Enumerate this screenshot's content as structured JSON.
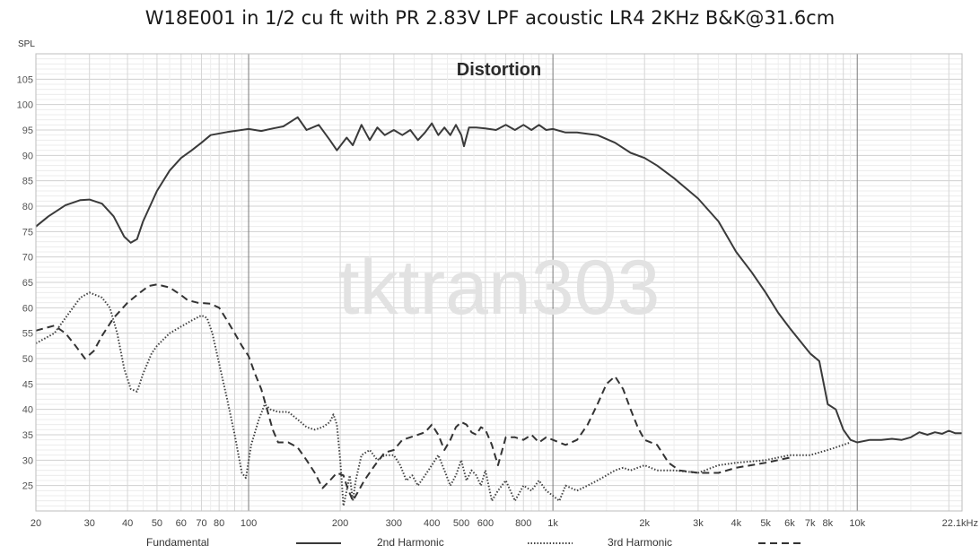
{
  "chart_data": {
    "type": "line",
    "title": "W18E001 in 1/2 cu ft with PR 2.83V LPF acoustic LR4 2KHz B&K@31.6cm",
    "subtitle": "Distortion",
    "ylabel": "SPL",
    "xlabel": "",
    "watermark": "tktran303",
    "x_scale": "log",
    "xlim": [
      20,
      22100
    ],
    "ylim": [
      20,
      110
    ],
    "grid": true,
    "x_ticks": [
      {
        "value": 20,
        "label": "20"
      },
      {
        "value": 30,
        "label": "30"
      },
      {
        "value": 40,
        "label": "40"
      },
      {
        "value": 50,
        "label": "50"
      },
      {
        "value": 60,
        "label": "60"
      },
      {
        "value": 70,
        "label": "70"
      },
      {
        "value": 80,
        "label": "80"
      },
      {
        "value": 100,
        "label": "100"
      },
      {
        "value": 200,
        "label": "200"
      },
      {
        "value": 300,
        "label": "300"
      },
      {
        "value": 400,
        "label": "400"
      },
      {
        "value": 500,
        "label": "500"
      },
      {
        "value": 600,
        "label": "600"
      },
      {
        "value": 800,
        "label": "800"
      },
      {
        "value": 1000,
        "label": "1k"
      },
      {
        "value": 2000,
        "label": "2k"
      },
      {
        "value": 3000,
        "label": "3k"
      },
      {
        "value": 4000,
        "label": "4k"
      },
      {
        "value": 5000,
        "label": "5k"
      },
      {
        "value": 6000,
        "label": "6k"
      },
      {
        "value": 7000,
        "label": "7k"
      },
      {
        "value": 8000,
        "label": "8k"
      },
      {
        "value": 10000,
        "label": "10k"
      },
      {
        "value": 22100,
        "label": "22.1kHz"
      }
    ],
    "y_ticks": [
      25,
      30,
      35,
      40,
      45,
      50,
      55,
      60,
      65,
      70,
      75,
      80,
      85,
      90,
      95,
      100,
      105
    ],
    "legend_position": "bottom",
    "series": [
      {
        "name": "Fundamental",
        "style": "solid",
        "color": "#3a3a3a",
        "points": [
          [
            20,
            76
          ],
          [
            22,
            78
          ],
          [
            25,
            80.2
          ],
          [
            28,
            81.2
          ],
          [
            30,
            81.3
          ],
          [
            33,
            80.5
          ],
          [
            36,
            78
          ],
          [
            39,
            74
          ],
          [
            41,
            72.8
          ],
          [
            43,
            73.5
          ],
          [
            45,
            77
          ],
          [
            50,
            83
          ],
          [
            55,
            87
          ],
          [
            60,
            89.5
          ],
          [
            65,
            91
          ],
          [
            70,
            92.5
          ],
          [
            75,
            94
          ],
          [
            85,
            94.6
          ],
          [
            100,
            95.2
          ],
          [
            110,
            94.8
          ],
          [
            120,
            95.3
          ],
          [
            130,
            95.7
          ],
          [
            145,
            97.5
          ],
          [
            155,
            95
          ],
          [
            170,
            96
          ],
          [
            185,
            93
          ],
          [
            195,
            91
          ],
          [
            210,
            93.5
          ],
          [
            220,
            92
          ],
          [
            235,
            96
          ],
          [
            250,
            93
          ],
          [
            265,
            95.5
          ],
          [
            280,
            94
          ],
          [
            300,
            95
          ],
          [
            320,
            94
          ],
          [
            340,
            95
          ],
          [
            360,
            93
          ],
          [
            380,
            94.5
          ],
          [
            400,
            96.3
          ],
          [
            420,
            94
          ],
          [
            440,
            95.5
          ],
          [
            460,
            94
          ],
          [
            480,
            96
          ],
          [
            500,
            94
          ],
          [
            510,
            91.8
          ],
          [
            530,
            95.5
          ],
          [
            560,
            95.5
          ],
          [
            600,
            95.3
          ],
          [
            650,
            95
          ],
          [
            700,
            96
          ],
          [
            750,
            95
          ],
          [
            800,
            96
          ],
          [
            850,
            95
          ],
          [
            900,
            96
          ],
          [
            950,
            95
          ],
          [
            1000,
            95.2
          ],
          [
            1100,
            94.5
          ],
          [
            1200,
            94.5
          ],
          [
            1400,
            94
          ],
          [
            1600,
            92.5
          ],
          [
            1800,
            90.5
          ],
          [
            2000,
            89.5
          ],
          [
            2200,
            88
          ],
          [
            2500,
            85.5
          ],
          [
            3000,
            81.5
          ],
          [
            3500,
            77
          ],
          [
            4000,
            71
          ],
          [
            4500,
            67
          ],
          [
            5000,
            63
          ],
          [
            5500,
            59
          ],
          [
            6000,
            56
          ],
          [
            7000,
            51
          ],
          [
            7500,
            49.5
          ],
          [
            8000,
            41
          ],
          [
            8500,
            40
          ],
          [
            9000,
            36
          ],
          [
            9500,
            34
          ],
          [
            10000,
            33.5
          ],
          [
            11000,
            34
          ],
          [
            12000,
            34
          ],
          [
            13000,
            34.2
          ],
          [
            14000,
            34
          ],
          [
            15000,
            34.5
          ],
          [
            16000,
            35.5
          ],
          [
            17000,
            35
          ],
          [
            18000,
            35.5
          ],
          [
            19000,
            35.2
          ],
          [
            20000,
            35.8
          ],
          [
            21000,
            35.3
          ],
          [
            22100,
            35.3
          ]
        ]
      },
      {
        "name": "2nd Harmonic",
        "style": "dotted",
        "color": "#444444",
        "points": [
          [
            20,
            53
          ],
          [
            23,
            55
          ],
          [
            25,
            58
          ],
          [
            28,
            62
          ],
          [
            30,
            63
          ],
          [
            33,
            62
          ],
          [
            35,
            60
          ],
          [
            37,
            55
          ],
          [
            39,
            48
          ],
          [
            41,
            44
          ],
          [
            43,
            43.5
          ],
          [
            45,
            47
          ],
          [
            48,
            51
          ],
          [
            50,
            52.5
          ],
          [
            55,
            55
          ],
          [
            60,
            56.3
          ],
          [
            65,
            57.5
          ],
          [
            70,
            58.5
          ],
          [
            73,
            58
          ],
          [
            76,
            55
          ],
          [
            80,
            49
          ],
          [
            85,
            42
          ],
          [
            90,
            35
          ],
          [
            95,
            27.5
          ],
          [
            98,
            26.5
          ],
          [
            102,
            33
          ],
          [
            108,
            38
          ],
          [
            113,
            41
          ],
          [
            118,
            40
          ],
          [
            125,
            39.5
          ],
          [
            135,
            39.5
          ],
          [
            145,
            38
          ],
          [
            155,
            36.5
          ],
          [
            165,
            36
          ],
          [
            175,
            36.5
          ],
          [
            185,
            37.5
          ],
          [
            190,
            39
          ],
          [
            195,
            37
          ],
          [
            200,
            30
          ],
          [
            205,
            21
          ],
          [
            210,
            24
          ],
          [
            215,
            27
          ],
          [
            220,
            22
          ],
          [
            225,
            26
          ],
          [
            235,
            31
          ],
          [
            250,
            32
          ],
          [
            265,
            30
          ],
          [
            280,
            31
          ],
          [
            300,
            31
          ],
          [
            315,
            29
          ],
          [
            330,
            26
          ],
          [
            345,
            27
          ],
          [
            360,
            25
          ],
          [
            380,
            27
          ],
          [
            400,
            29
          ],
          [
            420,
            31
          ],
          [
            440,
            28
          ],
          [
            460,
            25
          ],
          [
            480,
            27
          ],
          [
            500,
            30
          ],
          [
            520,
            26
          ],
          [
            540,
            28
          ],
          [
            560,
            27
          ],
          [
            580,
            25
          ],
          [
            600,
            28
          ],
          [
            630,
            22
          ],
          [
            660,
            24
          ],
          [
            700,
            26
          ],
          [
            750,
            22
          ],
          [
            800,
            25
          ],
          [
            850,
            24
          ],
          [
            900,
            26
          ],
          [
            950,
            24
          ],
          [
            1000,
            23
          ],
          [
            1050,
            22
          ],
          [
            1100,
            25
          ],
          [
            1200,
            24
          ],
          [
            1300,
            25
          ],
          [
            1400,
            26
          ],
          [
            1500,
            27
          ],
          [
            1600,
            28
          ],
          [
            1700,
            28.5
          ],
          [
            1800,
            28
          ],
          [
            2000,
            29
          ],
          [
            2200,
            28
          ],
          [
            2500,
            28
          ],
          [
            3000,
            27.5
          ],
          [
            3500,
            29
          ],
          [
            4000,
            29.5
          ],
          [
            5000,
            30
          ],
          [
            6000,
            31
          ],
          [
            7000,
            31
          ],
          [
            8000,
            32
          ],
          [
            9000,
            33
          ],
          [
            9500,
            33.5
          ]
        ]
      },
      {
        "name": "3rd Harmonic",
        "style": "dashed",
        "color": "#333333",
        "points": [
          [
            20,
            55.5
          ],
          [
            23,
            56.5
          ],
          [
            25,
            55
          ],
          [
            27,
            52.5
          ],
          [
            29,
            50
          ],
          [
            31,
            51.5
          ],
          [
            33,
            54.5
          ],
          [
            36,
            58
          ],
          [
            40,
            61
          ],
          [
            44,
            63
          ],
          [
            47,
            64.3
          ],
          [
            50,
            64.6
          ],
          [
            55,
            64
          ],
          [
            60,
            62.5
          ],
          [
            63,
            61.5
          ],
          [
            68,
            61
          ],
          [
            75,
            60.8
          ],
          [
            80,
            60
          ],
          [
            85,
            57.5
          ],
          [
            90,
            55
          ],
          [
            95,
            52.5
          ],
          [
            100,
            50.5
          ],
          [
            105,
            47
          ],
          [
            110,
            44
          ],
          [
            115,
            40
          ],
          [
            120,
            36
          ],
          [
            125,
            33.5
          ],
          [
            135,
            33.5
          ],
          [
            145,
            32.5
          ],
          [
            155,
            30
          ],
          [
            165,
            27.5
          ],
          [
            175,
            24.5
          ],
          [
            185,
            26
          ],
          [
            195,
            27.5
          ],
          [
            205,
            27
          ],
          [
            210,
            25
          ],
          [
            220,
            22
          ],
          [
            230,
            24
          ],
          [
            240,
            26
          ],
          [
            260,
            29
          ],
          [
            280,
            31.5
          ],
          [
            300,
            32
          ],
          [
            320,
            34
          ],
          [
            340,
            34.5
          ],
          [
            360,
            35
          ],
          [
            380,
            35.5
          ],
          [
            400,
            37
          ],
          [
            420,
            35
          ],
          [
            440,
            32
          ],
          [
            460,
            34
          ],
          [
            480,
            36.5
          ],
          [
            500,
            37.5
          ],
          [
            520,
            37
          ],
          [
            540,
            35.5
          ],
          [
            560,
            35
          ],
          [
            580,
            36.5
          ],
          [
            600,
            36
          ],
          [
            630,
            33
          ],
          [
            660,
            29
          ],
          [
            700,
            34.5
          ],
          [
            750,
            34.5
          ],
          [
            800,
            34
          ],
          [
            850,
            35
          ],
          [
            900,
            33.5
          ],
          [
            950,
            34.5
          ],
          [
            1000,
            34
          ],
          [
            1100,
            33
          ],
          [
            1200,
            34
          ],
          [
            1300,
            37
          ],
          [
            1400,
            41
          ],
          [
            1500,
            45
          ],
          [
            1600,
            46.5
          ],
          [
            1700,
            44
          ],
          [
            1800,
            40
          ],
          [
            1900,
            36.5
          ],
          [
            2000,
            34
          ],
          [
            2200,
            33
          ],
          [
            2400,
            29.5
          ],
          [
            2600,
            28
          ],
          [
            3000,
            27.5
          ],
          [
            3500,
            27.5
          ],
          [
            4000,
            28.5
          ],
          [
            5000,
            29.5
          ],
          [
            6000,
            30.5
          ]
        ]
      }
    ]
  }
}
